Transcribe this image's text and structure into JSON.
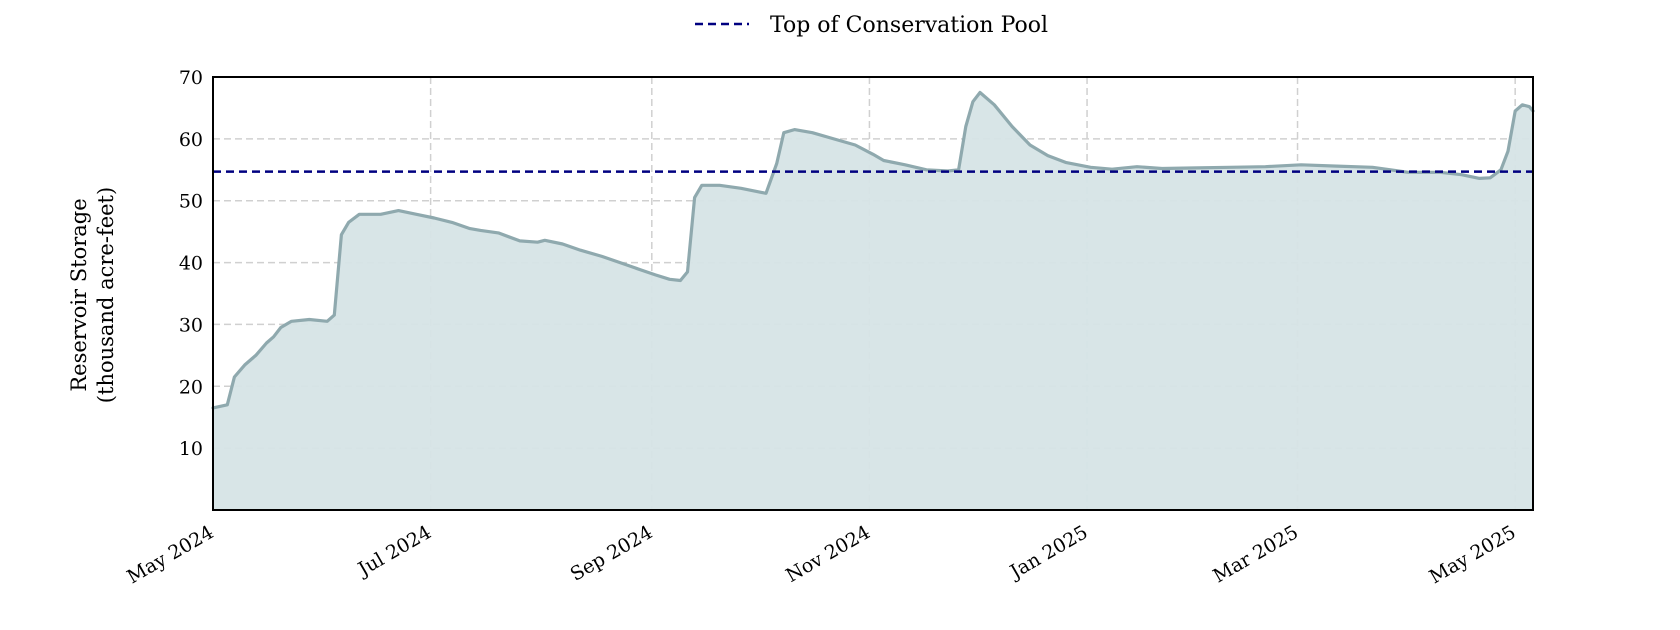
{
  "chart_data": {
    "type": "area",
    "title": "",
    "xlabel": "",
    "ylabel_lines": [
      "Reservoir Storage",
      "(thousand acre-feet)"
    ],
    "x_range": [
      "2024-05-01",
      "2025-05-06"
    ],
    "ylim": [
      0,
      70
    ],
    "y_ticks": [
      10,
      20,
      30,
      40,
      50,
      60,
      70
    ],
    "x_ticks": [
      {
        "date": "2024-05-01",
        "label": "May 2024"
      },
      {
        "date": "2024-07-01",
        "label": "Jul 2024"
      },
      {
        "date": "2024-09-01",
        "label": "Sep 2024"
      },
      {
        "date": "2024-11-01",
        "label": "Nov 2024"
      },
      {
        "date": "2025-01-01",
        "label": "Jan 2025"
      },
      {
        "date": "2025-03-01",
        "label": "Mar 2025"
      },
      {
        "date": "2025-05-01",
        "label": "May 2025"
      }
    ],
    "grid": true,
    "legend_position": "top-center",
    "series": [
      {
        "style": "line-with-filled-area",
        "color": "#8fa9ae",
        "fill_color": "#d6e4e6",
        "points": [
          [
            "2024-05-01",
            16.5
          ],
          [
            "2024-05-05",
            17.0
          ],
          [
            "2024-05-07",
            21.5
          ],
          [
            "2024-05-10",
            23.5
          ],
          [
            "2024-05-13",
            25.0
          ],
          [
            "2024-05-16",
            27.0
          ],
          [
            "2024-05-18",
            28.0
          ],
          [
            "2024-05-20",
            29.5
          ],
          [
            "2024-05-23",
            30.5
          ],
          [
            "2024-05-28",
            30.8
          ],
          [
            "2024-06-02",
            30.5
          ],
          [
            "2024-06-04",
            31.5
          ],
          [
            "2024-06-06",
            44.5
          ],
          [
            "2024-06-08",
            46.5
          ],
          [
            "2024-06-11",
            47.8
          ],
          [
            "2024-06-17",
            47.8
          ],
          [
            "2024-06-22",
            48.4
          ],
          [
            "2024-06-27",
            47.8
          ],
          [
            "2024-07-02",
            47.2
          ],
          [
            "2024-07-07",
            46.5
          ],
          [
            "2024-07-12",
            45.5
          ],
          [
            "2024-07-15",
            45.2
          ],
          [
            "2024-07-20",
            44.8
          ],
          [
            "2024-07-26",
            43.5
          ],
          [
            "2024-07-31",
            43.3
          ],
          [
            "2024-08-02",
            43.6
          ],
          [
            "2024-08-07",
            43.0
          ],
          [
            "2024-08-12",
            42.0
          ],
          [
            "2024-08-18",
            41.0
          ],
          [
            "2024-08-24",
            39.8
          ],
          [
            "2024-08-29",
            38.8
          ],
          [
            "2024-09-02",
            38.0
          ],
          [
            "2024-09-06",
            37.3
          ],
          [
            "2024-09-09",
            37.1
          ],
          [
            "2024-09-11",
            38.5
          ],
          [
            "2024-09-13",
            50.5
          ],
          [
            "2024-09-15",
            52.5
          ],
          [
            "2024-09-20",
            52.5
          ],
          [
            "2024-09-26",
            52.0
          ],
          [
            "2024-10-03",
            51.2
          ],
          [
            "2024-10-06",
            56.0
          ],
          [
            "2024-10-08",
            61.0
          ],
          [
            "2024-10-11",
            61.5
          ],
          [
            "2024-10-16",
            61.0
          ],
          [
            "2024-10-22",
            60.0
          ],
          [
            "2024-10-28",
            59.0
          ],
          [
            "2024-11-02",
            57.5
          ],
          [
            "2024-11-05",
            56.5
          ],
          [
            "2024-11-11",
            55.8
          ],
          [
            "2024-11-17",
            55.0
          ],
          [
            "2024-11-23",
            54.8
          ],
          [
            "2024-11-26",
            55.0
          ],
          [
            "2024-11-28",
            62.0
          ],
          [
            "2024-11-30",
            66.0
          ],
          [
            "2024-12-02",
            67.5
          ],
          [
            "2024-12-06",
            65.5
          ],
          [
            "2024-12-11",
            62.0
          ],
          [
            "2024-12-16",
            59.0
          ],
          [
            "2024-12-21",
            57.3
          ],
          [
            "2024-12-26",
            56.2
          ],
          [
            "2025-01-02",
            55.4
          ],
          [
            "2025-01-08",
            55.1
          ],
          [
            "2025-01-15",
            55.5
          ],
          [
            "2025-01-22",
            55.2
          ],
          [
            "2025-02-01",
            55.3
          ],
          [
            "2025-02-10",
            55.4
          ],
          [
            "2025-02-20",
            55.5
          ],
          [
            "2025-03-02",
            55.8
          ],
          [
            "2025-03-12",
            55.6
          ],
          [
            "2025-03-22",
            55.4
          ],
          [
            "2025-04-01",
            54.6
          ],
          [
            "2025-04-10",
            54.6
          ],
          [
            "2025-04-16",
            54.2
          ],
          [
            "2025-04-21",
            53.6
          ],
          [
            "2025-04-24",
            53.7
          ],
          [
            "2025-04-27",
            55.0
          ],
          [
            "2025-04-29",
            58.0
          ],
          [
            "2025-05-01",
            64.5
          ],
          [
            "2025-05-03",
            65.5
          ],
          [
            "2025-05-05",
            65.2
          ],
          [
            "2025-05-06",
            64.5
          ]
        ]
      }
    ],
    "reference_lines": [
      {
        "name": "Top of Conservation Pool",
        "y": 54.7,
        "color": "#000080",
        "style": "dashed"
      }
    ]
  }
}
